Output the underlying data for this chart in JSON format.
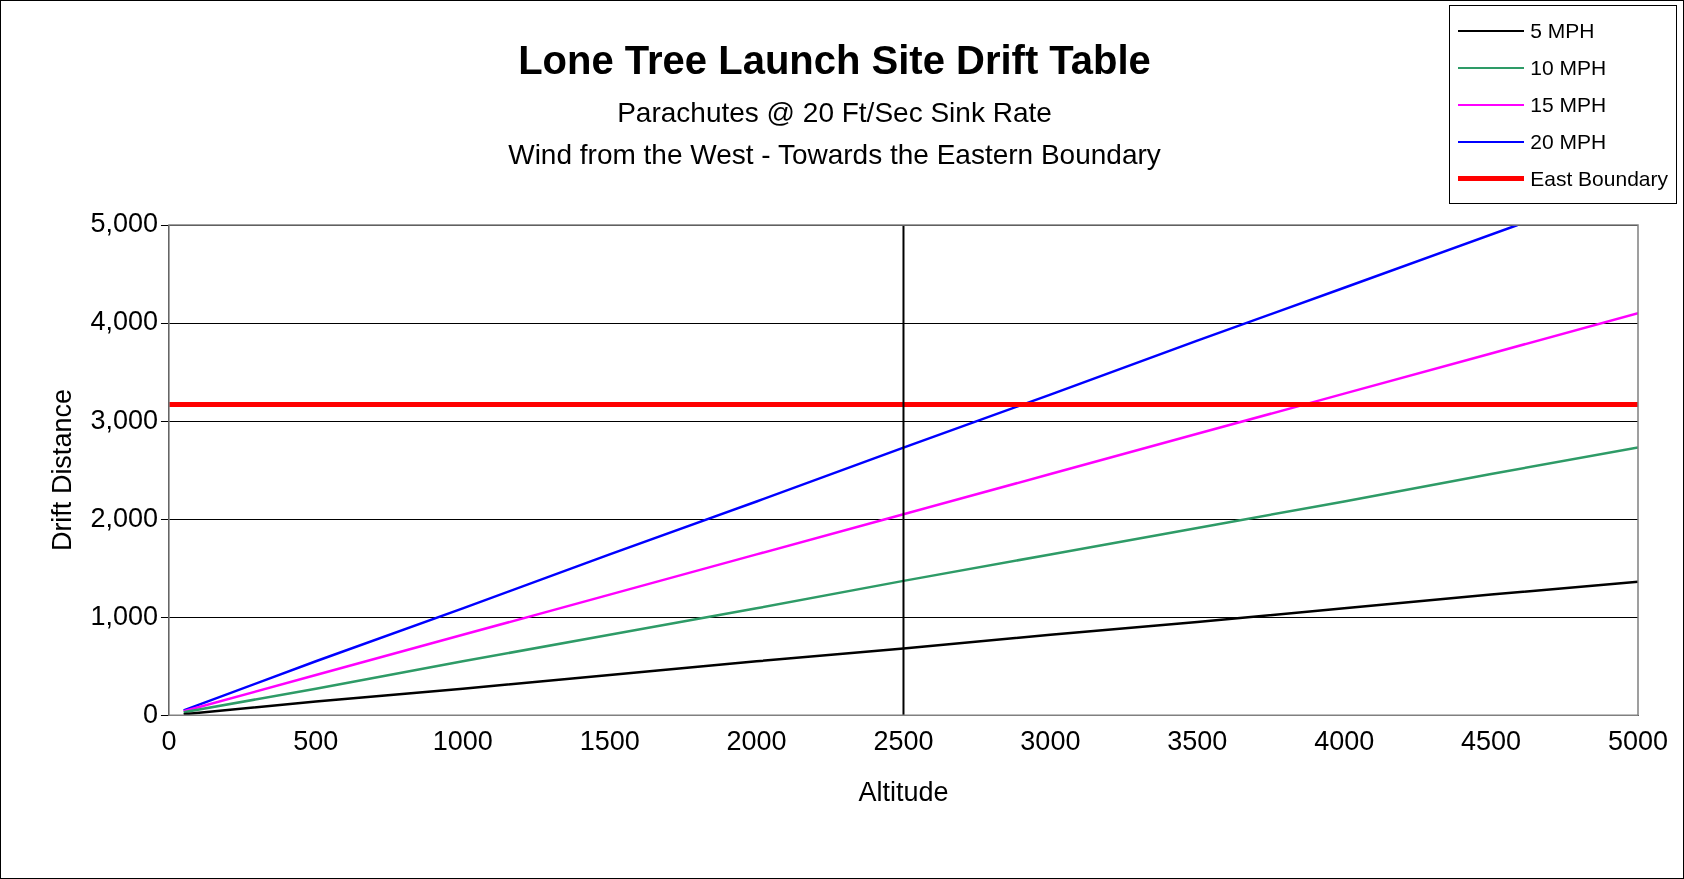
{
  "chart_data": {
    "type": "line",
    "title": "Lone Tree Launch Site Drift Table",
    "subtitle": "Parachutes @ 20 Ft/Sec Sink Rate\nWind from the West - Towards the Eastern Boundary",
    "xlabel": "Altitude",
    "ylabel": "Drift Distance",
    "x": [
      50,
      500,
      1000,
      1500,
      2000,
      2500,
      3000,
      3500,
      4000,
      4500,
      5000
    ],
    "series": [
      {
        "name": "5 MPH",
        "color": "#000000",
        "values": [
          10,
          140,
          270,
          410,
          550,
          680,
          820,
          950,
          1090,
          1230,
          1360
        ]
      },
      {
        "name": "10 MPH",
        "color": "#2e9b67",
        "values": [
          30,
          270,
          550,
          820,
          1090,
          1370,
          1640,
          1910,
          2180,
          2460,
          2730
        ]
      },
      {
        "name": "15 MPH",
        "color": "#ff00ff",
        "values": [
          40,
          410,
          820,
          1230,
          1640,
          2050,
          2460,
          2870,
          3280,
          3690,
          4100
        ]
      },
      {
        "name": "20 MPH",
        "color": "#0000ff",
        "x": [
          50,
          500,
          1000,
          1500,
          2000,
          2500,
          3000,
          3500,
          4000,
          4590
        ],
        "values": [
          50,
          550,
          1090,
          1640,
          2180,
          2730,
          3270,
          3820,
          4360,
          5000
        ]
      },
      {
        "name": "East Boundary",
        "color": "#ff0000",
        "x": [
          0,
          5000
        ],
        "values": [
          3170,
          3170
        ]
      }
    ],
    "ref_lines": [
      {
        "axis": "x",
        "value": 2500,
        "color": "#000000"
      }
    ],
    "xlim": [
      0,
      5000
    ],
    "xticks": [
      0,
      500,
      1000,
      1500,
      2000,
      2500,
      3000,
      3500,
      4000,
      4500,
      5000
    ],
    "ylim": [
      0,
      5000
    ],
    "yticks": [
      {
        "value": 0,
        "label": "0"
      },
      {
        "value": 1000,
        "label": "1,000"
      },
      {
        "value": 2000,
        "label": "2,000"
      },
      {
        "value": 3000,
        "label": "3,000"
      },
      {
        "value": 4000,
        "label": "4,000"
      },
      {
        "value": 5000,
        "label": "5,000"
      }
    ],
    "grid": "y",
    "legend": "top right",
    "marker": "none",
    "line_style": "solid"
  }
}
